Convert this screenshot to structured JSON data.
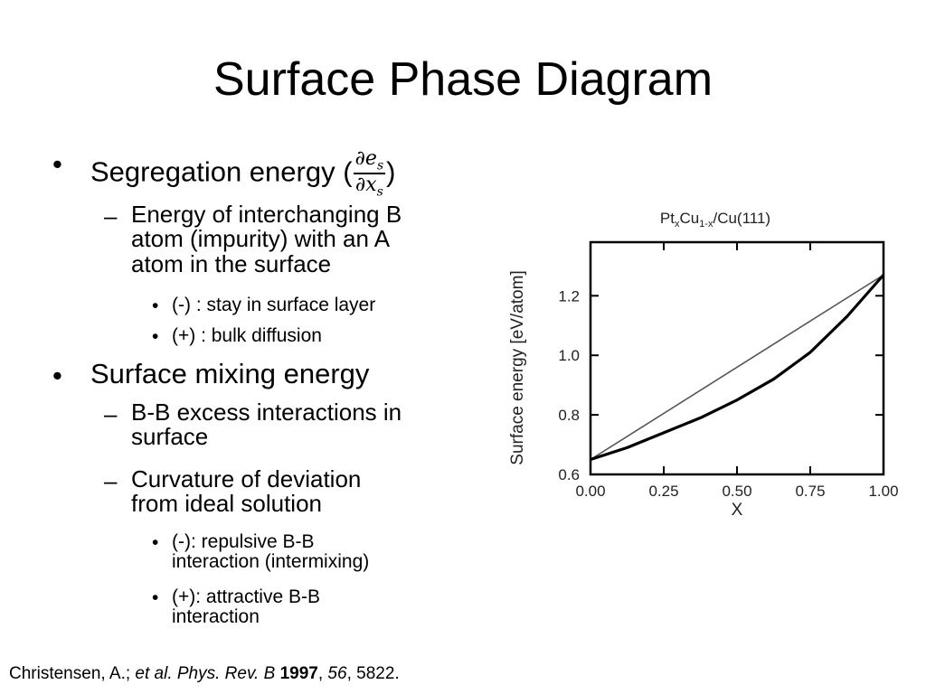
{
  "slide": {
    "title": "Surface Phase Diagram",
    "bullets": {
      "b1_prefix": "Segregation energy (",
      "b1_frac_num": "∂e",
      "b1_frac_num_sub": "s",
      "b1_frac_den": "∂x",
      "b1_frac_den_sub": "s",
      "b1_suffix": ")",
      "b1_sub1_line1": "Energy of interchanging B",
      "b1_sub1_line2": "atom (impurity) with an A",
      "b1_sub1_line3": "atom in the surface",
      "b1_sub1_a": "(-) : stay in surface layer",
      "b1_sub1_b": "(+) : bulk diffusion",
      "b2": "Surface mixing energy",
      "b2_sub1_line1": "B-B excess interactions in",
      "b2_sub1_line2": "surface",
      "b2_sub2_line1": "Curvature of deviation",
      "b2_sub2_line2": "from ideal solution",
      "b2_sub2_a_line1": "(-): repulsive B-B",
      "b2_sub2_a_line2": "interaction (intermixing)",
      "b2_sub2_b_line1": "(+): attractive B-B",
      "b2_sub2_b_line2": "interaction"
    },
    "citation": {
      "authors": "Christensen, A.; ",
      "etal": "et al. Phys. Rev. B",
      "year": "1997",
      "volume": "56",
      "page": "5822."
    }
  },
  "chart_data": {
    "type": "line",
    "title_prefix": "Pt",
    "title_sub1": "x",
    "title_mid": "Cu",
    "title_sub2": "1-x",
    "title_suffix": "/Cu(111)",
    "xlabel": "X",
    "ylabel": "Surface energy [eV/atom]",
    "xlim": [
      0,
      1
    ],
    "ylim": [
      0.6,
      1.38
    ],
    "xticks": [
      "0.00",
      "0.25",
      "0.50",
      "0.75",
      "1.00"
    ],
    "yticks": [
      "0.6",
      "0.8",
      "1.0",
      "1.2"
    ],
    "grid": false,
    "series": [
      {
        "role": "ideal",
        "color": "#555555",
        "x": [
          0,
          1
        ],
        "y": [
          0.65,
          1.27
        ]
      },
      {
        "role": "computed",
        "color": "#000000",
        "x": [
          0,
          0.125,
          0.25,
          0.375,
          0.5,
          0.625,
          0.75,
          0.875,
          1
        ],
        "y": [
          0.65,
          0.69,
          0.74,
          0.79,
          0.85,
          0.92,
          1.01,
          1.13,
          1.27
        ]
      }
    ]
  }
}
